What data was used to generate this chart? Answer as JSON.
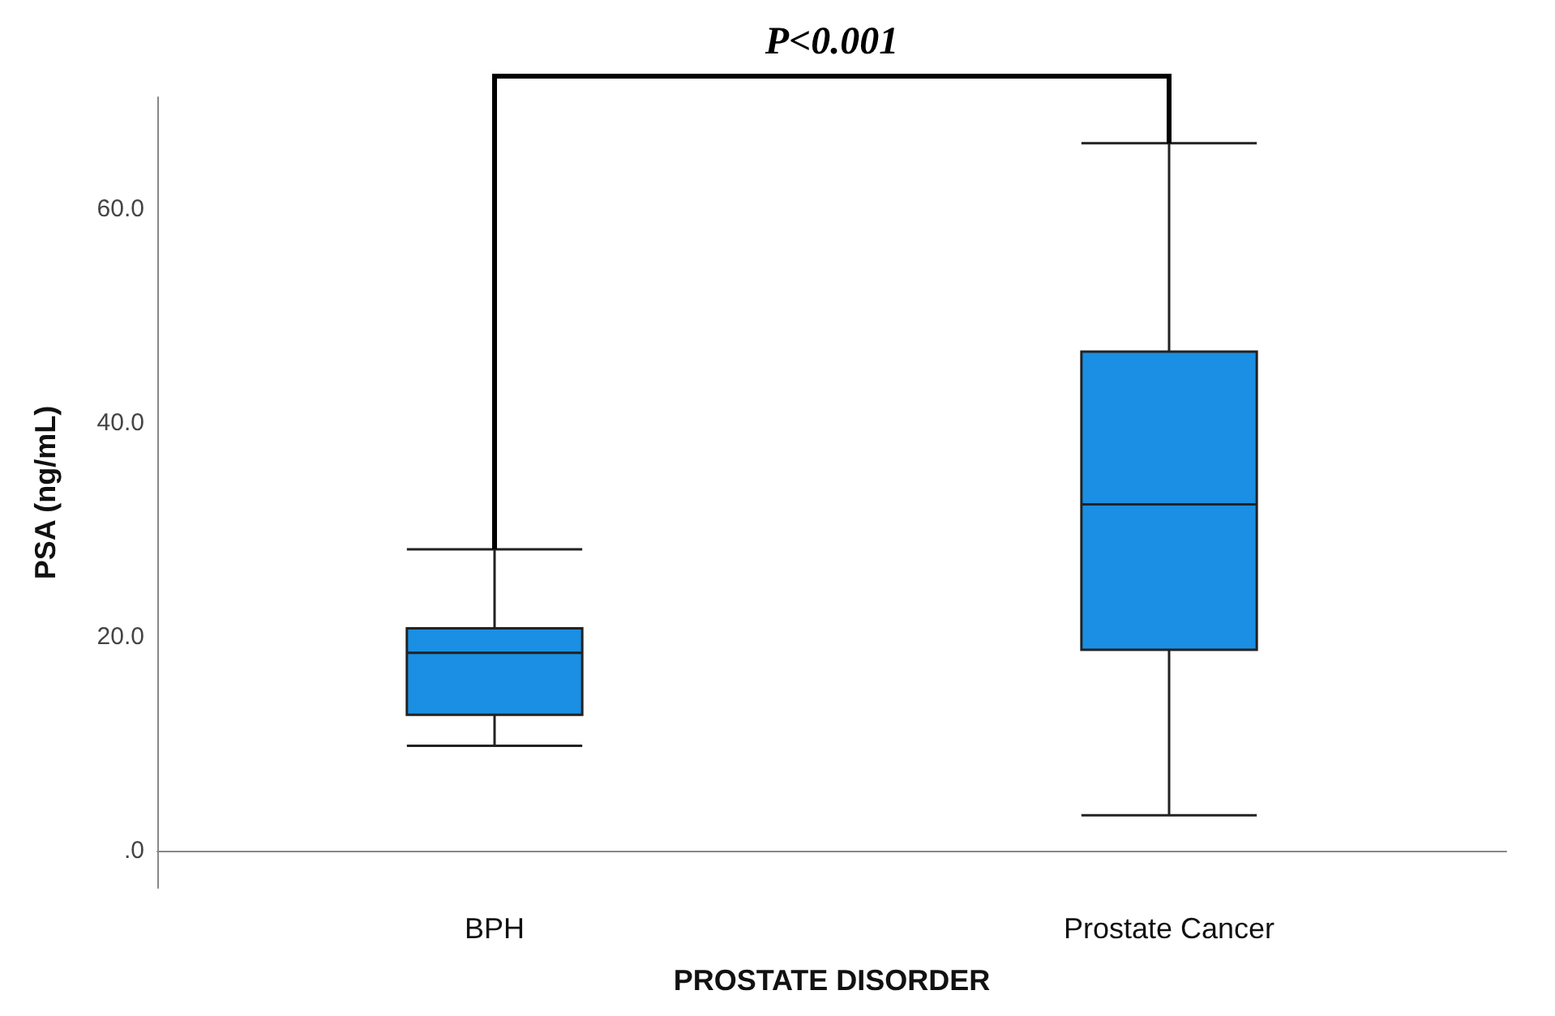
{
  "chart_data": {
    "type": "box",
    "xlabel": "PROSTATE DISORDER",
    "ylabel": "PSA (ng/mL)",
    "categories": [
      "BPH",
      "Prostate Cancer"
    ],
    "boxes": [
      {
        "low": 9.8,
        "q1": 12.7,
        "median": 18.5,
        "q3": 20.8,
        "high": 28.2
      },
      {
        "low": 3.3,
        "q1": 18.8,
        "median": 32.4,
        "q3": 46.7,
        "high": 66.2
      }
    ],
    "color": "#1a8fe3",
    "ylim": [
      -3.5,
      70.5
    ],
    "yticks": [
      {
        "value": 0,
        "label": ".0"
      },
      {
        "value": 20,
        "label": "20.0"
      },
      {
        "value": 40,
        "label": "40.0"
      },
      {
        "value": 60,
        "label": "60.0"
      }
    ],
    "grid": false,
    "annotations": [
      "P<0.001"
    ]
  }
}
